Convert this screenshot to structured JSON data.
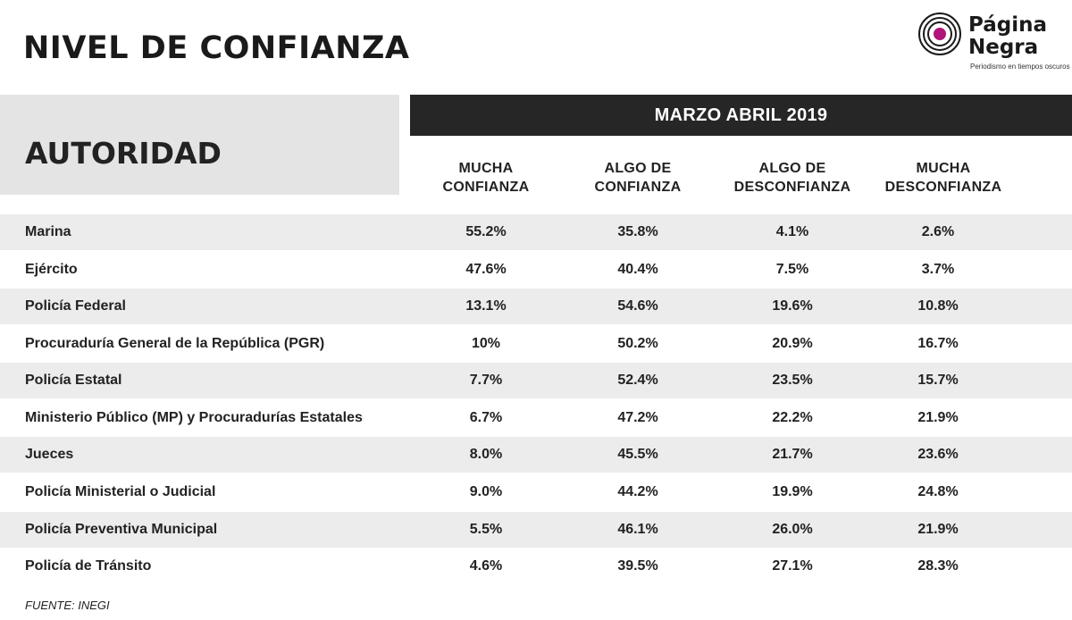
{
  "title": "NIVEL DE CONFIANZA",
  "logo": {
    "line1": "Página",
    "line2": "Negra",
    "tagline": "Periodismo en tiempos oscuros",
    "accent_color": "#b0167a"
  },
  "source": "FUENTE: INEGI",
  "chart_data": {
    "type": "table",
    "row_header": "AUTORIDAD",
    "period": "MARZO ABRIL 2019",
    "columns": [
      {
        "line1": "MUCHA",
        "line2": "CONFIANZA"
      },
      {
        "line1": "ALGO DE",
        "line2": "CONFIANZA"
      },
      {
        "line1": "ALGO DE",
        "line2": "DESCONFIANZA"
      },
      {
        "line1": "MUCHA",
        "line2": "DESCONFIANZA"
      }
    ],
    "rows": [
      {
        "name": "Marina",
        "values": [
          "55.2%",
          "35.8%",
          "4.1%",
          "2.6%"
        ]
      },
      {
        "name": "Ejército",
        "values": [
          "47.6%",
          "40.4%",
          "7.5%",
          "3.7%"
        ]
      },
      {
        "name": "Policía Federal",
        "values": [
          "13.1%",
          "54.6%",
          "19.6%",
          "10.8%"
        ]
      },
      {
        "name": "Procuraduría General de la República (PGR)",
        "values": [
          "10%",
          "50.2%",
          "20.9%",
          "16.7%"
        ]
      },
      {
        "name": "Policía Estatal",
        "values": [
          "7.7%",
          "52.4%",
          "23.5%",
          "15.7%"
        ]
      },
      {
        "name": "Ministerio Público (MP) y Procuradurías Estatales",
        "values": [
          "6.7%",
          "47.2%",
          "22.2%",
          "21.9%"
        ]
      },
      {
        "name": "Jueces",
        "values": [
          "8.0%",
          "45.5%",
          "21.7%",
          "23.6%"
        ]
      },
      {
        "name": "Policía Ministerial o Judicial",
        "values": [
          "9.0%",
          "44.2%",
          "19.9%",
          "24.8%"
        ]
      },
      {
        "name": "Policía Preventiva Municipal",
        "values": [
          "5.5%",
          "46.1%",
          "26.0%",
          "21.9%"
        ]
      },
      {
        "name": "Policía de Tránsito",
        "values": [
          "4.6%",
          "39.5%",
          "27.1%",
          "28.3%"
        ]
      }
    ]
  }
}
